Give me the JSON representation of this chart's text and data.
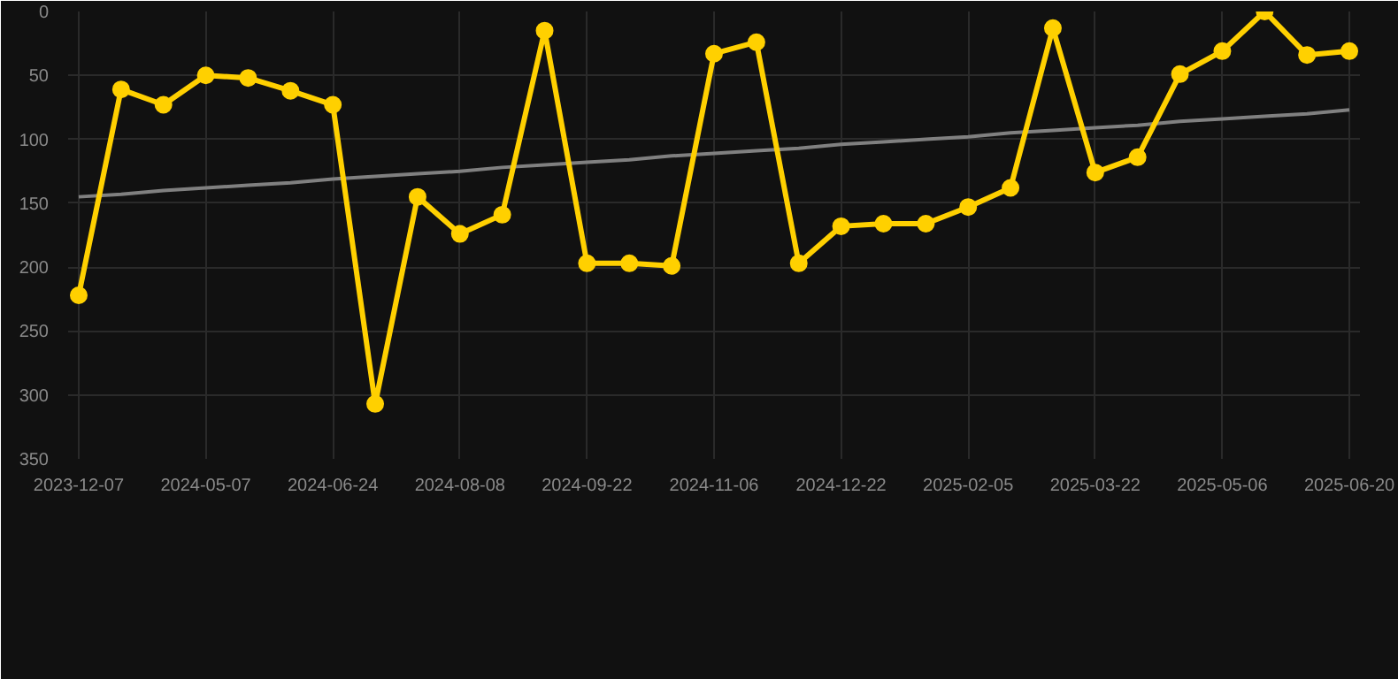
{
  "chart_data": {
    "type": "line",
    "categories": [
      "2023-12-07",
      null,
      null,
      "2024-05-07",
      null,
      null,
      "2024-06-24",
      null,
      null,
      "2024-08-08",
      null,
      null,
      "2024-09-22",
      null,
      null,
      "2024-11-06",
      null,
      null,
      "2024-12-22",
      null,
      null,
      "2025-02-05",
      null,
      null,
      "2025-03-22",
      null,
      null,
      "2025-05-06",
      null,
      null,
      "2025-06-20"
    ],
    "series": [
      {
        "color": "#ffd000",
        "marker": "circle",
        "values": [
          222,
          61,
          73,
          50,
          52,
          62,
          73,
          307,
          145,
          174,
          159,
          15,
          197,
          197,
          199,
          33,
          24,
          197,
          168,
          166,
          166,
          153,
          138,
          13,
          126,
          114,
          49,
          31,
          0,
          34,
          31
        ]
      },
      {
        "type": "line",
        "color": "#808080",
        "marker": "none",
        "values": [
          145,
          143,
          140,
          138,
          136,
          134,
          131,
          129,
          127,
          125,
          122,
          120,
          118,
          116,
          113,
          111,
          109,
          107,
          104,
          102,
          100,
          98,
          95,
          93,
          91,
          89,
          86,
          84,
          82,
          80,
          77
        ]
      }
    ],
    "ylim": [
      350,
      0
    ],
    "yticks": [
      0,
      50,
      100,
      150,
      200,
      250,
      300,
      350
    ],
    "grid": true
  }
}
